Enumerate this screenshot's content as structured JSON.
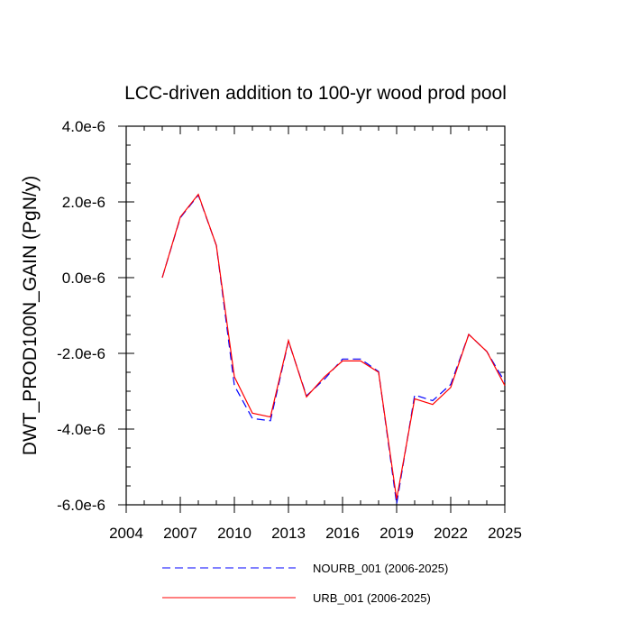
{
  "chart_data": {
    "type": "line",
    "title": "LCC-driven addition to 100-yr wood prod pool",
    "xlabel": "",
    "ylabel": "DWT_PROD100N_GAIN  (PgN/y)",
    "xlim": [
      2004,
      2025
    ],
    "ylim": [
      -6e-06,
      4e-06
    ],
    "x_ticks": [
      2004,
      2007,
      2010,
      2013,
      2016,
      2019,
      2022,
      2025
    ],
    "x_tick_labels": [
      "2004",
      "2007",
      "2010",
      "2013",
      "2016",
      "2019",
      "2022",
      "2025"
    ],
    "y_ticks": [
      -6e-06,
      -4e-06,
      -2e-06,
      0.0,
      2e-06,
      4e-06
    ],
    "y_tick_labels": [
      "-6.0e-6",
      "-4.0e-6",
      "-2.0e-6",
      "0.0e-6",
      "2.0e-6",
      "4.0e-6"
    ],
    "x": [
      2006,
      2007,
      2008,
      2009,
      2010,
      2011,
      2012,
      2013,
      2014,
      2015,
      2016,
      2017,
      2018,
      2019,
      2020,
      2021,
      2022,
      2023,
      2024,
      2025
    ],
    "series": [
      {
        "name": "NOURB_001 (2006-2025)",
        "color": "#0000ff",
        "dash": "dashed",
        "values": [
          0.0,
          1.58e-06,
          2.18e-06,
          8.5e-07,
          -2.85e-06,
          -3.72e-06,
          -3.78e-06,
          -1.68e-06,
          -3.12e-06,
          -2.68e-06,
          -2.15e-06,
          -2.15e-06,
          -2.48e-06,
          -5.98e-06,
          -3.1e-06,
          -3.25e-06,
          -2.82e-06,
          -1.5e-06,
          -1.95e-06,
          -2.75e-06
        ]
      },
      {
        "name": "URB_001 (2006-2025)",
        "color": "#ff0000",
        "dash": "solid",
        "values": [
          0.0,
          1.6e-06,
          2.2e-06,
          8.5e-07,
          -2.62e-06,
          -3.58e-06,
          -3.68e-06,
          -1.66e-06,
          -3.15e-06,
          -2.62e-06,
          -2.2e-06,
          -2.2e-06,
          -2.5e-06,
          -5.85e-06,
          -3.2e-06,
          -3.35e-06,
          -2.9e-06,
          -1.5e-06,
          -1.95e-06,
          -2.85e-06
        ]
      }
    ],
    "legend": {
      "placement": "bottom-center",
      "entries": [
        "NOURB_001 (2006-2025)",
        "URB_001 (2006-2025)"
      ]
    },
    "grid": false
  }
}
